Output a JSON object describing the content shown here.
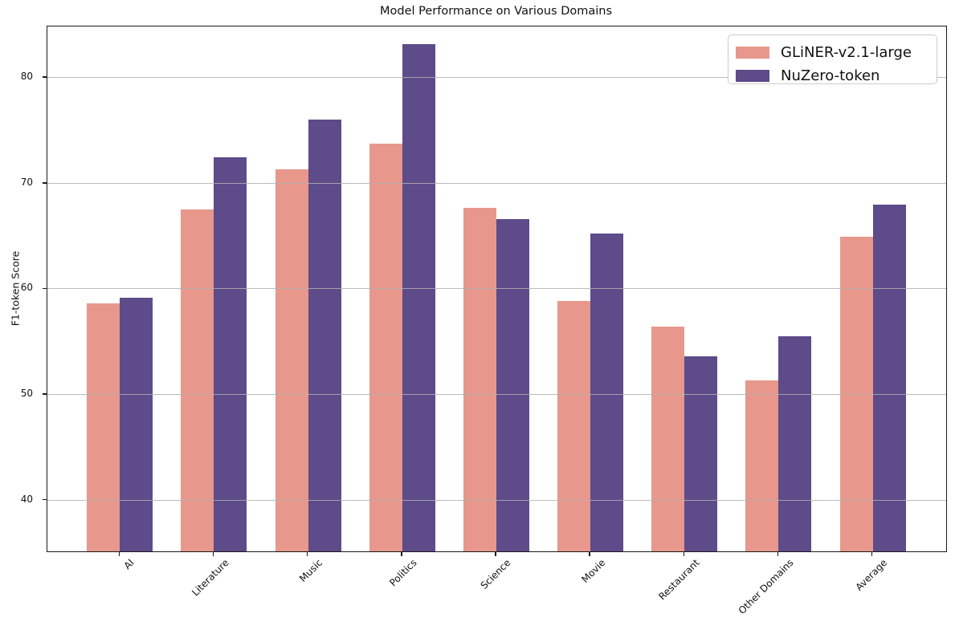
{
  "title": "Model Performance on Various Domains",
  "chart_data": {
    "type": "bar",
    "title": "Model Performance on Various Domains",
    "xlabel": "",
    "ylabel": "F1-token Score",
    "categories": [
      "AI",
      "Literature",
      "Music",
      "Politics",
      "Science",
      "Movie",
      "Restaurant",
      "Other Domains",
      "Average"
    ],
    "series": [
      {
        "name": "GLiNER-v2.1-large",
        "color": "#e8978c",
        "values": [
          58.6,
          67.5,
          71.3,
          73.7,
          67.6,
          58.8,
          56.4,
          51.3,
          64.9
        ]
      },
      {
        "name": "NuZero-token",
        "color": "#5d4b8a",
        "values": [
          59.1,
          72.4,
          76.0,
          83.1,
          66.6,
          65.2,
          53.6,
          55.5,
          67.9
        ]
      }
    ],
    "yticks": [
      40,
      50,
      60,
      70,
      80
    ],
    "ylim": [
      35.1,
      84.8
    ],
    "xlim": [
      -0.77,
      8.78
    ],
    "bar_width": 0.35,
    "grid": "horizontal-only",
    "grid_color": "#b0b0b0",
    "legend_position": "upper-right"
  }
}
